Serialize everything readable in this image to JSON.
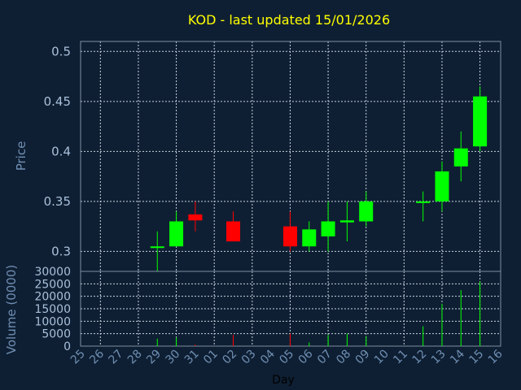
{
  "chart_data": {
    "type": "candlestick",
    "title": "KOD - last updated 15/01/2026",
    "xlabel": "Day",
    "price_ylabel": "Price",
    "volume_ylabel": "Volume (0000)",
    "categories": [
      "25",
      "26",
      "27",
      "28",
      "29",
      "30",
      "31",
      "01",
      "02",
      "03",
      "04",
      "05",
      "06",
      "07",
      "08",
      "09",
      "10",
      "11",
      "12",
      "13",
      "14",
      "15",
      "16"
    ],
    "price_ylim": [
      0.28,
      0.51
    ],
    "price_yticks": [
      "0.3",
      "0.35",
      "0.4",
      "0.45",
      "0.5"
    ],
    "volume_ylim": [
      0,
      30000
    ],
    "volume_yticks": [
      "0",
      "5000",
      "10000",
      "15000",
      "20000",
      "25000",
      "30000"
    ],
    "grid": true,
    "up_color": "#00ff00",
    "down_color": "#ff0000",
    "candles": [
      {
        "day": "29",
        "open": 0.305,
        "high": 0.32,
        "low": 0.28,
        "close": 0.305,
        "volume": 3000
      },
      {
        "day": "30",
        "open": 0.305,
        "high": 0.34,
        "low": 0.305,
        "close": 0.33,
        "volume": 3500
      },
      {
        "day": "31",
        "open": 0.337,
        "high": 0.35,
        "low": 0.32,
        "close": 0.331,
        "volume": 600
      },
      {
        "day": "02",
        "open": 0.33,
        "high": 0.34,
        "low": 0.31,
        "close": 0.31,
        "volume": 4500
      },
      {
        "day": "05",
        "open": 0.325,
        "high": 0.34,
        "low": 0.3,
        "close": 0.305,
        "volume": 5000
      },
      {
        "day": "06",
        "open": 0.305,
        "high": 0.33,
        "low": 0.3,
        "close": 0.322,
        "volume": 1500
      },
      {
        "day": "07",
        "open": 0.315,
        "high": 0.35,
        "low": 0.3,
        "close": 0.33,
        "volume": 4500
      },
      {
        "day": "08",
        "open": 0.329,
        "high": 0.35,
        "low": 0.31,
        "close": 0.331,
        "volume": 5000
      },
      {
        "day": "09",
        "open": 0.33,
        "high": 0.36,
        "low": 0.325,
        "close": 0.35,
        "volume": 4000
      },
      {
        "day": "12",
        "open": 0.349,
        "high": 0.36,
        "low": 0.33,
        "close": 0.35,
        "volume": 8000
      },
      {
        "day": "13",
        "open": 0.35,
        "high": 0.39,
        "low": 0.34,
        "close": 0.38,
        "volume": 17000
      },
      {
        "day": "14",
        "open": 0.385,
        "high": 0.42,
        "low": 0.37,
        "close": 0.403,
        "volume": 22500
      },
      {
        "day": "15",
        "open": 0.405,
        "high": 0.465,
        "low": 0.4,
        "close": 0.455,
        "volume": 26000
      }
    ]
  }
}
